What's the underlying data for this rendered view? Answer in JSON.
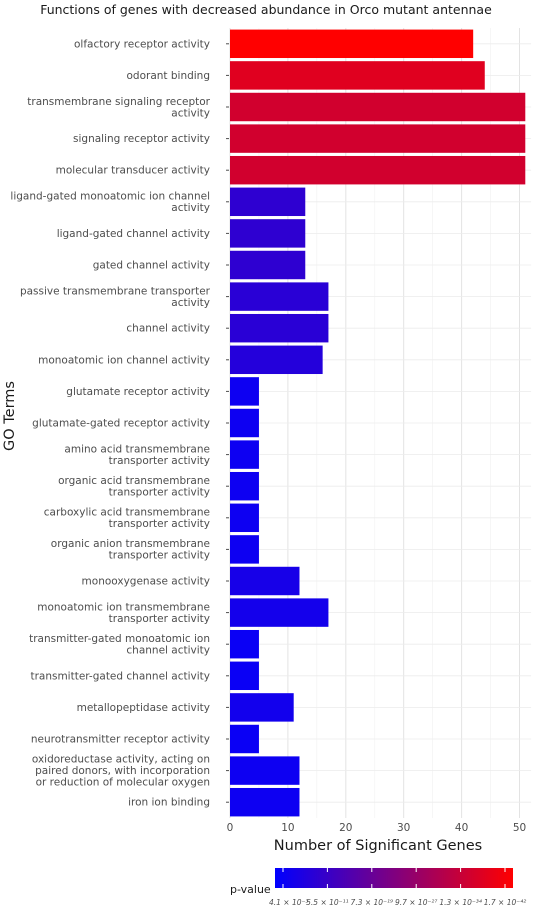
{
  "chart_data": {
    "type": "bar",
    "orientation": "horizontal",
    "title": "Functions of genes with decreased abundance in Orco mutant antennae",
    "xlabel": "Number of Significant Genes",
    "ylabel": "GO Terms",
    "xlim": [
      0,
      52
    ],
    "xticks": [
      0,
      10,
      20,
      30,
      40,
      50
    ],
    "grid": true,
    "categories": [
      [
        "olfactory receptor activity"
      ],
      [
        "odorant binding"
      ],
      [
        "transmembrane signaling receptor",
        "activity"
      ],
      [
        "signaling receptor activity"
      ],
      [
        "molecular transducer activity"
      ],
      [
        "ligand-gated monoatomic ion channel",
        "activity"
      ],
      [
        "ligand-gated channel activity"
      ],
      [
        "gated channel activity"
      ],
      [
        "passive transmembrane transporter",
        "activity"
      ],
      [
        "channel activity"
      ],
      [
        "monoatomic ion channel activity"
      ],
      [
        "glutamate receptor activity"
      ],
      [
        "glutamate-gated receptor activity"
      ],
      [
        "amino acid transmembrane",
        "transporter activity"
      ],
      [
        "organic acid transmembrane",
        "transporter activity"
      ],
      [
        "carboxylic acid transmembrane",
        "transporter activity"
      ],
      [
        "organic anion transmembrane",
        "transporter activity"
      ],
      [
        "monooxygenase activity"
      ],
      [
        "monoatomic ion transmembrane",
        "transporter activity"
      ],
      [
        "transmitter-gated monoatomic ion",
        "channel activity"
      ],
      [
        "transmitter-gated channel activity"
      ],
      [
        "metallopeptidase activity"
      ],
      [
        "neurotransmitter receptor activity"
      ],
      [
        "oxidoreductase activity, acting on",
        "paired donors, with incorporation",
        "or reduction of molecular oxygen"
      ],
      [
        "iron ion binding"
      ]
    ],
    "values": [
      42,
      44,
      51,
      51,
      51,
      13,
      13,
      13,
      17,
      17,
      16,
      5,
      5,
      5,
      5,
      5,
      5,
      12,
      17,
      5,
      5,
      11,
      5,
      12,
      12
    ],
    "color_intensity": [
      1.0,
      0.88,
      0.82,
      0.82,
      0.82,
      0.18,
      0.18,
      0.18,
      0.16,
      0.16,
      0.14,
      0.05,
      0.05,
      0.05,
      0.05,
      0.05,
      0.05,
      0.09,
      0.08,
      0.04,
      0.04,
      0.07,
      0.04,
      0.05,
      0.05
    ],
    "legend": {
      "title": "p-value",
      "placement": "bottom",
      "ticks": [
        "4.1 × 10⁻³",
        "5.5 × 10⁻¹¹",
        "7.3 × 10⁻¹⁹",
        "9.7 × 10⁻²⁷",
        "1.3 × 10⁻³⁴",
        "1.7 × 10⁻⁴²"
      ],
      "low_color": "#0000ff",
      "high_color": "#ff0000"
    }
  }
}
